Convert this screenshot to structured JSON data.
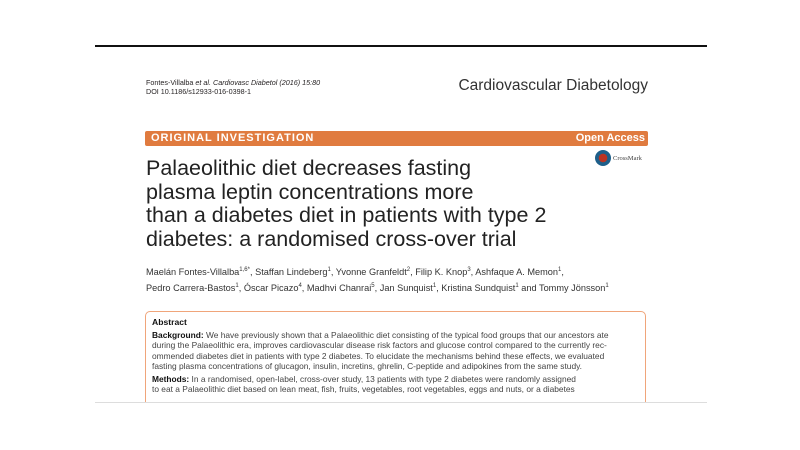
{
  "header": {
    "citation_authors": "Fontes-Villalba",
    "citation_etal": "et al.",
    "citation_journal": "Cardiovasc Diabetol",
    "citation_rest": "(2016) 15:80",
    "doi": "DOI 10.1186/s12933-016-0398-1",
    "journal": "Cardiovascular Diabetology"
  },
  "banner": {
    "type": "ORIGINAL INVESTIGATION",
    "access": "Open Access",
    "color": "#e07b3f"
  },
  "crossmark": "CrossMark",
  "title_lines": [
    "Palaeolithic diet decreases fasting",
    "plasma leptin concentrations more",
    "than a diabetes diet in patients with type 2",
    "diabetes: a randomised cross-over trial"
  ],
  "authors": [
    {
      "name": "Maelán Fontes-Villalba",
      "sup": "1,6*"
    },
    {
      "name": "Staffan Lindeberg",
      "sup": "1"
    },
    {
      "name": "Yvonne Granfeldt",
      "sup": "2"
    },
    {
      "name": "Filip K. Knop",
      "sup": "3"
    },
    {
      "name": "Ashfaque A. Memon",
      "sup": "1"
    },
    {
      "name": "Pedro Carrera-Bastos",
      "sup": "1"
    },
    {
      "name": "Óscar Picazo",
      "sup": "4"
    },
    {
      "name": "Madhvi Chanrai",
      "sup": "5"
    },
    {
      "name": "Jan Sunquist",
      "sup": "1"
    },
    {
      "name": "Kristina Sundquist",
      "sup": "1"
    },
    {
      "name": "Tommy Jönsson",
      "sup": "1"
    }
  ],
  "abstract": {
    "heading": "Abstract",
    "background_label": "Background:",
    "background_lines": [
      "We have previously shown that a Palaeolithic diet consisting of the typical food groups that our ancestors ate",
      "during the Palaeolithic era, improves cardiovascular disease risk factors and glucose control compared to the currently rec-",
      "ommended diabetes diet in patients with type 2 diabetes. To elucidate the mechanisms behind these effects, we evaluated",
      "fasting plasma concentrations of glucagon, insulin, incretins, ghrelin, C-peptide and adipokines from the same study."
    ],
    "methods_label": "Methods:",
    "methods_lines": [
      "In a randomised, open-label, cross-over study, 13 patients with type 2 diabetes were randomly assigned",
      "to eat a Palaeolithic diet based on lean meat, fish, fruits, vegetables, root vegetables, eggs and nuts, or a diabetes"
    ]
  }
}
